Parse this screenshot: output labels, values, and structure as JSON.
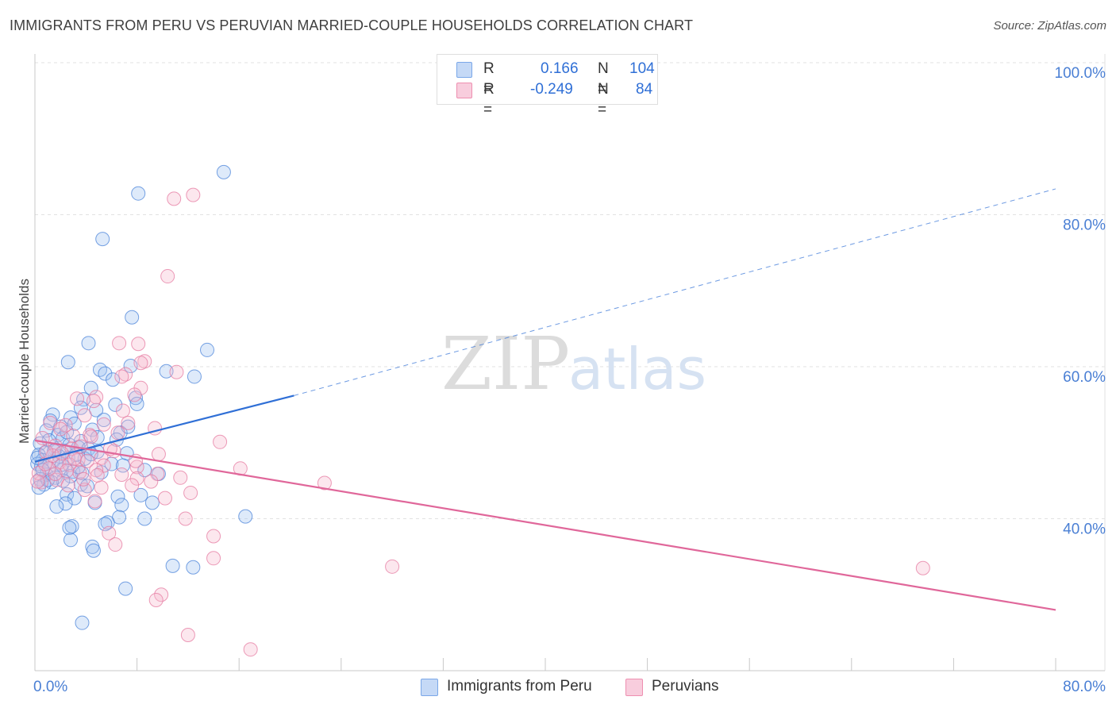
{
  "title": "IMMIGRANTS FROM PERU VS PERUVIAN MARRIED-COUPLE HOUSEHOLDS CORRELATION CHART",
  "source": "Source: ZipAtlas.com",
  "watermark": {
    "zip": "ZIP",
    "atlas": "atlas"
  },
  "legend": {
    "r_label": "R =",
    "n_label": "N =",
    "rows": [
      {
        "name": "Immigrants from Peru",
        "r": "0.166",
        "n": "104",
        "color": "#7aa7e8",
        "fill": "#c5d9f6"
      },
      {
        "name": "Peruvians",
        "r": "-0.249",
        "n": "84",
        "color": "#ee8fb0",
        "fill": "#f8cddd"
      }
    ]
  },
  "chart_data": {
    "type": "scatter",
    "title": "IMMIGRANTS FROM PERU VS PERUVIAN MARRIED-COUPLE HOUSEHOLDS CORRELATION CHART",
    "xlabel": "",
    "ylabel": "Married-couple Households",
    "xlim": [
      0,
      80
    ],
    "ylim": [
      20,
      100
    ],
    "y_ticks": [
      40,
      60,
      80,
      100
    ],
    "y_tick_labels": [
      "40.0%",
      "60.0%",
      "80.0%",
      "100.0%"
    ],
    "x_tick_labels": [
      "0.0%",
      "80.0%"
    ],
    "grid": true,
    "legend_position": "top-center",
    "series": [
      {
        "name": "Immigrants from Peru",
        "color": "#4a83da",
        "fill": "rgba(160,195,240,0.35)",
        "trend": {
          "x0": 0,
          "y0": 47.5,
          "x1": 20.3,
          "y1": 56.2,
          "dash_to": 80,
          "dash_y": 83.4,
          "color": "#2f6fd6"
        },
        "points": [
          [
            14.8,
            85.6
          ],
          [
            8.1,
            82.8
          ],
          [
            5.3,
            76.8
          ],
          [
            7.6,
            66.5
          ],
          [
            13.5,
            62.2
          ],
          [
            4.2,
            63.1
          ],
          [
            2.6,
            60.6
          ],
          [
            5.1,
            59.6
          ],
          [
            7.5,
            60.1
          ],
          [
            10.3,
            59.4
          ],
          [
            12.5,
            58.7
          ],
          [
            5.5,
            59.1
          ],
          [
            6.1,
            58.3
          ],
          [
            4.4,
            57.2
          ],
          [
            3.8,
            55.7
          ],
          [
            7.9,
            55.9
          ],
          [
            8.0,
            55.1
          ],
          [
            6.3,
            55.0
          ],
          [
            3.6,
            54.6
          ],
          [
            4.8,
            54.3
          ],
          [
            1.4,
            53.7
          ],
          [
            2.8,
            53.3
          ],
          [
            5.4,
            53.0
          ],
          [
            3.1,
            52.5
          ],
          [
            1.2,
            52.9
          ],
          [
            2.0,
            52.1
          ],
          [
            0.9,
            51.6
          ],
          [
            4.5,
            51.7
          ],
          [
            6.7,
            51.3
          ],
          [
            1.8,
            51.0
          ],
          [
            2.2,
            50.6
          ],
          [
            3.6,
            50.2
          ],
          [
            4.9,
            50.7
          ],
          [
            1.1,
            50.3
          ],
          [
            0.4,
            49.9
          ],
          [
            2.7,
            49.7
          ],
          [
            3.4,
            49.4
          ],
          [
            4.2,
            49.2
          ],
          [
            1.6,
            49.1
          ],
          [
            2.3,
            48.9
          ],
          [
            0.8,
            48.7
          ],
          [
            0.3,
            48.4
          ],
          [
            1.9,
            48.2
          ],
          [
            2.6,
            48.0
          ],
          [
            0.6,
            47.7
          ],
          [
            1.4,
            47.5
          ],
          [
            0.2,
            47.2
          ],
          [
            0.5,
            46.9
          ],
          [
            1.1,
            46.6
          ],
          [
            2.1,
            46.4
          ],
          [
            3.0,
            46.2
          ],
          [
            3.7,
            46.0
          ],
          [
            0.9,
            45.8
          ],
          [
            2.8,
            45.6
          ],
          [
            1.6,
            45.4
          ],
          [
            0.4,
            45.2
          ],
          [
            2.2,
            45.0
          ],
          [
            1.3,
            44.8
          ],
          [
            0.7,
            44.5
          ],
          [
            3.6,
            44.5
          ],
          [
            4.1,
            44.3
          ],
          [
            0.3,
            44.1
          ],
          [
            2.5,
            43.2
          ],
          [
            3.1,
            42.7
          ],
          [
            6.5,
            42.9
          ],
          [
            8.3,
            43.1
          ],
          [
            9.2,
            42.1
          ],
          [
            6.8,
            41.8
          ],
          [
            4.7,
            42.1
          ],
          [
            2.4,
            42.0
          ],
          [
            1.7,
            41.6
          ],
          [
            6.6,
            40.2
          ],
          [
            8.6,
            40.0
          ],
          [
            16.5,
            40.3
          ],
          [
            2.9,
            39.0
          ],
          [
            5.7,
            39.5
          ],
          [
            5.5,
            39.3
          ],
          [
            2.7,
            38.8
          ],
          [
            2.8,
            37.2
          ],
          [
            4.5,
            36.3
          ],
          [
            4.6,
            35.8
          ],
          [
            10.8,
            33.8
          ],
          [
            12.4,
            33.6
          ],
          [
            7.1,
            30.8
          ],
          [
            3.7,
            26.3
          ],
          [
            9.7,
            45.9
          ],
          [
            7.2,
            48.6
          ],
          [
            6.0,
            47.2
          ],
          [
            4.9,
            48.8
          ],
          [
            3.4,
            46.8
          ],
          [
            6.4,
            50.4
          ],
          [
            2.1,
            47.1
          ],
          [
            7.3,
            52.1
          ],
          [
            5.2,
            46.1
          ],
          [
            8.6,
            46.4
          ],
          [
            1.5,
            48.9
          ],
          [
            3.9,
            47.9
          ],
          [
            2.5,
            51.4
          ],
          [
            0.2,
            48.0
          ],
          [
            1.0,
            45.1
          ],
          [
            4.4,
            48.5
          ],
          [
            6.9,
            47.0
          ],
          [
            3.2,
            48.4
          ],
          [
            0.6,
            46.4
          ]
        ]
      },
      {
        "name": "Peruvians",
        "color": "#e67aa0",
        "fill": "rgba(245,185,205,0.35)",
        "trend": {
          "x0": 0,
          "y0": 50.3,
          "x1": 80,
          "y1": 28.0,
          "color": "#e0679a"
        },
        "points": [
          [
            12.4,
            82.6
          ],
          [
            10.9,
            82.1
          ],
          [
            10.4,
            71.9
          ],
          [
            6.6,
            63.1
          ],
          [
            8.1,
            63.0
          ],
          [
            8.6,
            60.7
          ],
          [
            8.3,
            60.5
          ],
          [
            11.1,
            59.3
          ],
          [
            7.1,
            59.0
          ],
          [
            6.8,
            58.7
          ],
          [
            8.3,
            57.2
          ],
          [
            7.8,
            56.3
          ],
          [
            4.8,
            56.0
          ],
          [
            3.3,
            55.8
          ],
          [
            4.6,
            55.5
          ],
          [
            6.9,
            54.2
          ],
          [
            3.9,
            53.6
          ],
          [
            5.4,
            52.4
          ],
          [
            2.4,
            52.3
          ],
          [
            9.4,
            51.9
          ],
          [
            4.3,
            51.0
          ],
          [
            3.0,
            50.9
          ],
          [
            14.5,
            50.1
          ],
          [
            1.6,
            49.6
          ],
          [
            2.9,
            49.2
          ],
          [
            6.2,
            48.9
          ],
          [
            9.7,
            48.5
          ],
          [
            5.2,
            48.0
          ],
          [
            3.4,
            47.8
          ],
          [
            4.1,
            47.6
          ],
          [
            1.9,
            47.4
          ],
          [
            2.7,
            47.1
          ],
          [
            5.4,
            47.0
          ],
          [
            8.0,
            46.8
          ],
          [
            1.1,
            46.6
          ],
          [
            4.8,
            46.4
          ],
          [
            3.5,
            46.1
          ],
          [
            6.8,
            45.8
          ],
          [
            9.6,
            45.9
          ],
          [
            11.4,
            45.4
          ],
          [
            8.0,
            45.3
          ],
          [
            1.7,
            45.1
          ],
          [
            0.5,
            44.8
          ],
          [
            7.6,
            44.4
          ],
          [
            5.2,
            44.1
          ],
          [
            3.9,
            43.8
          ],
          [
            10.2,
            42.7
          ],
          [
            12.2,
            43.4
          ],
          [
            4.7,
            42.3
          ],
          [
            16.1,
            46.6
          ],
          [
            22.7,
            44.7
          ],
          [
            11.8,
            40.0
          ],
          [
            5.8,
            38.1
          ],
          [
            14.0,
            37.7
          ],
          [
            6.3,
            36.6
          ],
          [
            14.0,
            34.8
          ],
          [
            28.0,
            33.7
          ],
          [
            69.6,
            33.5
          ],
          [
            9.9,
            30.0
          ],
          [
            9.5,
            29.3
          ],
          [
            12.0,
            24.7
          ],
          [
            16.9,
            22.8
          ],
          [
            0.3,
            46.0
          ],
          [
            0.8,
            47.2
          ],
          [
            1.4,
            48.3
          ],
          [
            2.1,
            48.6
          ],
          [
            0.2,
            44.9
          ],
          [
            3.6,
            49.5
          ],
          [
            2.5,
            46.3
          ],
          [
            1.2,
            52.6
          ],
          [
            4.4,
            50.8
          ],
          [
            5.9,
            49.2
          ],
          [
            6.5,
            51.3
          ],
          [
            7.3,
            52.6
          ],
          [
            2.0,
            51.8
          ],
          [
            3.1,
            47.9
          ],
          [
            4.9,
            45.7
          ],
          [
            0.6,
            50.6
          ],
          [
            1.6,
            45.9
          ],
          [
            7.9,
            47.6
          ],
          [
            9.1,
            44.9
          ],
          [
            2.6,
            44.4
          ],
          [
            0.9,
            48.8
          ],
          [
            3.8,
            45.2
          ]
        ]
      }
    ]
  }
}
